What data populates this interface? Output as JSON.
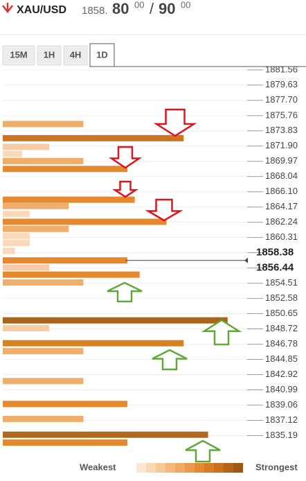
{
  "header": {
    "symbol": "XAU/USD",
    "bid_big": "1858.",
    "bid_pips": "80",
    "bid_frac": "00",
    "separator": "/",
    "ask_pips": "90",
    "ask_frac": "00"
  },
  "tabs": [
    "15M",
    "1H",
    "4H",
    "1D"
  ],
  "legend": {
    "weakest": "Weakest",
    "strongest": "Strongest",
    "colors": [
      "#fde6cf",
      "#fbd8b4",
      "#f8c898",
      "#f4b77c",
      "#f0a862",
      "#eb994a",
      "#e48a34",
      "#d77d26",
      "#c8711e",
      "#b46418",
      "#9e5714"
    ]
  },
  "chart_data": {
    "type": "bar",
    "orientation": "horizontal",
    "ylim": [
      1834.0,
      1882.6
    ],
    "yticks": [
      1881.56,
      1879.63,
      {
        "value": 1877.7,
        "label": "1877.70"
      },
      1875.76,
      1873.83,
      {
        "value": 1871.9,
        "label": "1871.90"
      },
      1869.97,
      1868.04,
      {
        "value": 1866.1,
        "label": "1866.10"
      },
      1864.17,
      1862.24,
      1860.31,
      1858.38,
      1856.44,
      1854.51,
      1852.58,
      1850.65,
      1848.72,
      1846.78,
      1844.85,
      1842.92,
      1840.99,
      1839.06,
      1837.12,
      1835.19
    ],
    "xlim": [
      0,
      100
    ],
    "current_price": 1857.4,
    "grid": true,
    "levels": [
      1874.7,
      1872.9,
      1871.8,
      1870.9,
      1870.0,
      1869.0,
      1865.1,
      1864.3,
      1863.3,
      1862.3,
      1861.4,
      1860.5,
      1859.6,
      1858.6,
      1857.4,
      1856.5,
      1855.6,
      1854.6,
      1849.8,
      1848.8,
      1846.9,
      1845.9,
      1842.1,
      1839.2,
      1837.3,
      1835.3,
      1834.3
    ],
    "values": [
      33,
      74,
      19,
      8,
      33,
      51,
      54,
      27,
      11,
      67,
      27,
      11,
      11,
      5,
      51,
      19,
      56,
      33,
      92,
      19,
      74,
      33,
      33,
      51,
      33,
      84,
      51
    ],
    "colors": [
      "#efae6c",
      "#cc741f",
      "#f8cba6",
      "#fad8bc",
      "#efae6c",
      "#e4892e",
      "#e4892e",
      "#efae6c",
      "#fad8bc",
      "#e4892e",
      "#efae6c",
      "#fad8bc",
      "#fad8bc",
      "#fad8bc",
      "#e4892e",
      "#f8cba6",
      "#e4892e",
      "#efae6c",
      "#a8641a",
      "#f8cba6",
      "#d9801f",
      "#efae6c",
      "#efae6c",
      "#e4892e",
      "#efae6c",
      "#b0691c",
      "#e4892e"
    ]
  }
}
